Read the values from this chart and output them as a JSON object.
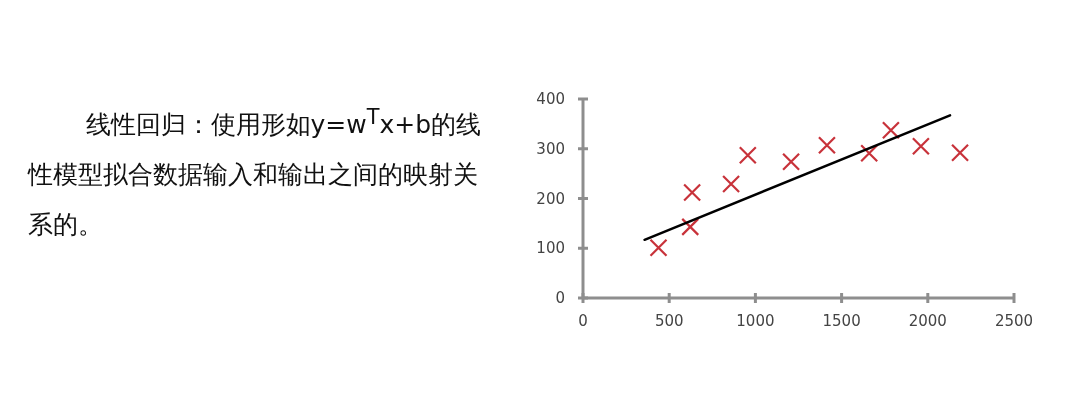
{
  "chart_data": {
    "type": "scatter",
    "annotations": [
      "线性回归：使用形如y=w$^{T}$x+b的线性模型拟合数据输入和输出之间的映射关系的。"
    ],
    "xlim": [
      0,
      2500
    ],
    "xticks": [
      0,
      500,
      1000,
      1500,
      2000,
      2500
    ],
    "ylim": [
      0,
      400
    ],
    "yticks": [
      0,
      100,
      200,
      300,
      400
    ],
    "grid": false,
    "marker": "cross",
    "series": [
      {
        "type": "scatter",
        "color": "#c8323a",
        "x": [
          438,
          622,
          633,
          859,
          956,
          1207,
          1415,
          1660,
          1786,
          1960,
          2187
        ],
        "values": [
          101,
          143,
          212,
          229,
          287,
          274,
          307,
          291,
          337,
          305,
          292
        ]
      },
      {
        "type": "line",
        "color": "#000000",
        "marker": "none",
        "line_style": "solid",
        "x": [
          357,
          2129
        ],
        "values": [
          117,
          367
        ]
      }
    ]
  }
}
